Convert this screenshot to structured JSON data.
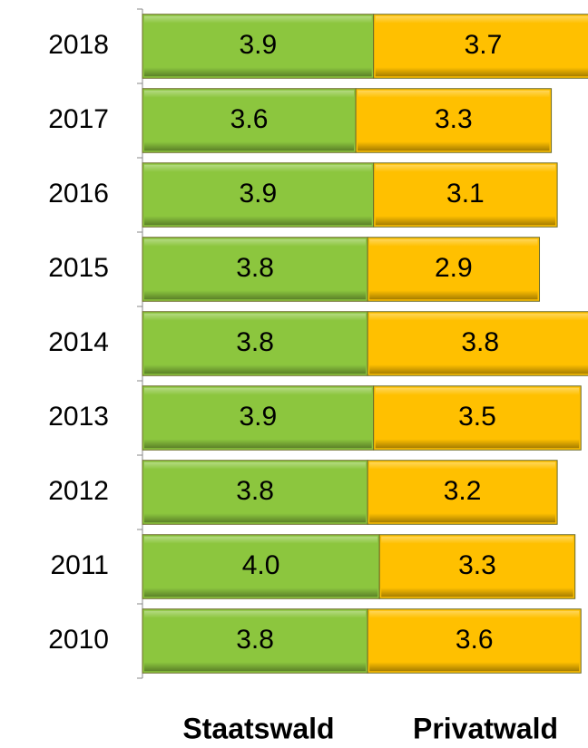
{
  "chart_data": {
    "type": "stacked-bar-horizontal",
    "categories": [
      "2018",
      "2017",
      "2016",
      "2015",
      "2014",
      "2013",
      "2012",
      "2011",
      "2010"
    ],
    "series": [
      {
        "name": "Staatswald",
        "color": "#8cc63e",
        "values": [
          3.9,
          3.6,
          3.9,
          3.8,
          3.8,
          3.9,
          3.8,
          4.0,
          3.8
        ],
        "value_labels": [
          "3.9",
          "3.6",
          "3.9",
          "3.8",
          "3.8",
          "3.9",
          "3.8",
          "4.0",
          "3.8"
        ]
      },
      {
        "name": "Privatwald",
        "color": "#ffc000",
        "values": [
          3.7,
          3.3,
          3.1,
          2.9,
          3.8,
          3.5,
          3.2,
          3.3,
          3.6
        ],
        "value_labels": [
          "3.7",
          "3.3",
          "3.1",
          "2.9",
          "3.8",
          "3.5",
          "3.2",
          "3.3",
          "3.6"
        ]
      }
    ]
  }
}
